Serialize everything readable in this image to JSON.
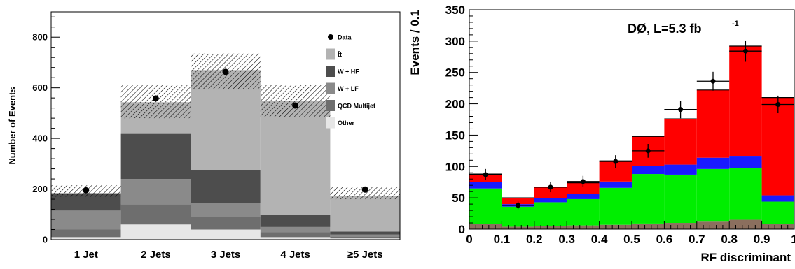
{
  "chart_data": [
    {
      "type": "bar",
      "stacked": true,
      "categories": [
        "1 Jet",
        "2 Jets",
        "3 Jets",
        "4 Jets",
        "≥5 Jets"
      ],
      "ylabel": "Number of Events",
      "xlabel": "",
      "ylim": [
        0,
        900
      ],
      "yticks": [
        0,
        200,
        400,
        600,
        800
      ],
      "series": [
        {
          "name": "Other",
          "color": "#e6e6e6",
          "values": [
            10,
            60,
            40,
            10,
            5
          ]
        },
        {
          "name": "QCD Multijet",
          "color": "#6e6e6e",
          "values": [
            30,
            80,
            50,
            20,
            8
          ]
        },
        {
          "name": "W + LF",
          "color": "#8a8a8a",
          "values": [
            75,
            100,
            55,
            20,
            7
          ]
        },
        {
          "name": "W + HF",
          "color": "#4d4d4d",
          "values": [
            65,
            178,
            130,
            48,
            12
          ]
        },
        {
          "name": "t̄t",
          "color": "#b3b3b3",
          "values": [
            5,
            125,
            395,
            450,
            140
          ]
        }
      ],
      "uncertainty_band": {
        "lower": [
          170,
          480,
          595,
          485,
          160
        ],
        "upper": [
          215,
          610,
          735,
          610,
          207
        ]
      },
      "data_points": {
        "name": "Data",
        "values": [
          195,
          558,
          663,
          530,
          198
        ]
      },
      "grid": false,
      "legend_position": "right-inside",
      "legend_order": [
        "Data",
        "t̄t",
        "W + HF",
        "W + LF",
        "QCD Multijet",
        "Other"
      ]
    },
    {
      "type": "bar",
      "stacked": true,
      "histogram": true,
      "bin_edges": [
        0,
        0.1,
        0.2,
        0.3,
        0.4,
        0.5,
        0.6,
        0.7,
        0.8,
        0.9,
        1.0
      ],
      "xlabel": "RF discriminant",
      "ylabel": "Events / 0.1",
      "xlim": [
        0,
        1
      ],
      "ylim": [
        0,
        350
      ],
      "xticks": [
        "0",
        "0.1",
        "0.2",
        "0.3",
        "0.4",
        "0.5",
        "0.6",
        "0.7",
        "0.8",
        "0.9",
        "1"
      ],
      "yticks": [
        0,
        50,
        100,
        150,
        200,
        250,
        300,
        350
      ],
      "annotation": "DØ, L=5.3 fb",
      "annotation_superscript": "-1",
      "series": [
        {
          "color": "#8b6f5e",
          "values": [
            8,
            4,
            5,
            6,
            7,
            9,
            10,
            12,
            15,
            8
          ]
        },
        {
          "color": "#00ee00",
          "values": [
            57,
            32,
            38,
            42,
            59,
            79,
            77,
            84,
            82,
            36
          ]
        },
        {
          "color": "#1a1aff",
          "values": [
            10,
            4,
            7,
            8,
            10,
            13,
            16,
            18,
            20,
            10
          ]
        },
        {
          "color": "#ff0000",
          "values": [
            13,
            10,
            17,
            18,
            33,
            47,
            73,
            108,
            175,
            156
          ]
        }
      ],
      "data_points": {
        "values": [
          87,
          38,
          67,
          76,
          108,
          125,
          191,
          236,
          284,
          199
        ],
        "errors": [
          9,
          6,
          8,
          9,
          10,
          11,
          14,
          15,
          17,
          14
        ]
      },
      "grid": false
    }
  ]
}
